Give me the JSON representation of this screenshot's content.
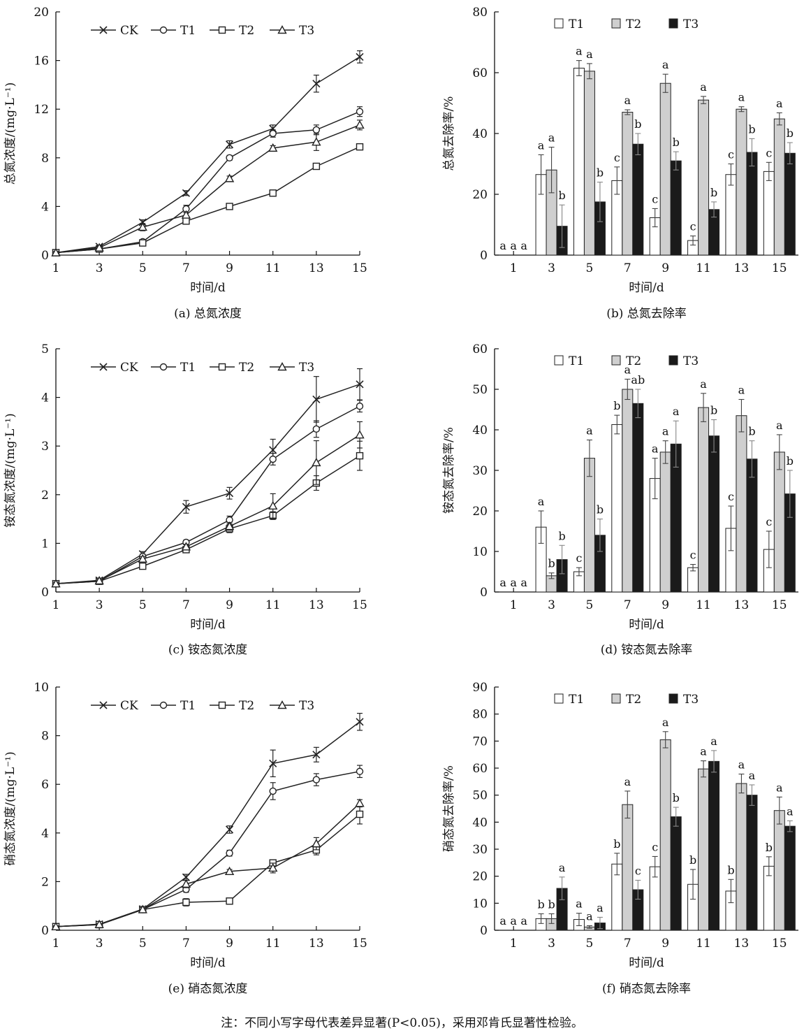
{
  "chart_data": [
    {
      "id": "a",
      "type": "line",
      "caption": "(a) 总氮浓度",
      "ylabel": "总氮浓度/(mg·L⁻¹)",
      "xlabel": "时间/d",
      "x": [
        1,
        3,
        5,
        7,
        9,
        11,
        13,
        15
      ],
      "ylim": [
        0,
        20
      ],
      "yticks": [
        0,
        4,
        8,
        12,
        16,
        20
      ],
      "series": [
        {
          "name": "CK",
          "marker": "x",
          "values": [
            0.2,
            0.7,
            2.7,
            5.1,
            9.1,
            10.4,
            14.1,
            16.3
          ],
          "err": [
            0.1,
            0.1,
            0.2,
            0.2,
            0.3,
            0.3,
            0.7,
            0.5
          ]
        },
        {
          "name": "T1",
          "marker": "circle",
          "values": [
            0.2,
            0.5,
            1.1,
            3.8,
            8.0,
            10.0,
            10.3,
            11.8
          ],
          "err": [
            0.1,
            0.1,
            0.1,
            0.3,
            0.2,
            0.3,
            0.4,
            0.4
          ]
        },
        {
          "name": "T2",
          "marker": "square",
          "values": [
            0.2,
            0.5,
            1.0,
            2.8,
            4.0,
            5.1,
            7.3,
            8.9
          ],
          "err": [
            0.1,
            0.1,
            0.1,
            0.2,
            0.1,
            0.1,
            0.1,
            0.2
          ]
        },
        {
          "name": "T3",
          "marker": "triangle",
          "values": [
            0.2,
            0.6,
            2.3,
            3.3,
            6.3,
            8.8,
            9.3,
            10.7
          ],
          "err": [
            0.1,
            0.1,
            0.3,
            0.2,
            0.2,
            0.2,
            0.7,
            0.4
          ]
        }
      ]
    },
    {
      "id": "b",
      "type": "bar",
      "caption": "(b) 总氮去除率",
      "ylabel": "总氮去除率/%",
      "xlabel": "时间/d",
      "categories": [
        "1",
        "3",
        "5",
        "7",
        "9",
        "11",
        "13",
        "15"
      ],
      "ylim": [
        0,
        80
      ],
      "yticks": [
        0,
        20,
        40,
        60,
        80
      ],
      "series": [
        {
          "name": "T1",
          "values": [
            0,
            26.5,
            61.5,
            24.5,
            12.3,
            4.8,
            26.5,
            27.5
          ],
          "err": [
            0,
            6.5,
            2.5,
            4.5,
            3,
            1.5,
            3.5,
            3
          ],
          "letters": [
            "a",
            "a",
            "a",
            "c",
            "c",
            "c",
            "c",
            "c"
          ]
        },
        {
          "name": "T2",
          "values": [
            0,
            28,
            60.5,
            47,
            56.5,
            51,
            48,
            44.8
          ],
          "err": [
            0,
            7.5,
            2.5,
            0.8,
            3,
            1.2,
            0.8,
            2
          ],
          "letters": [
            "a",
            "a",
            "a",
            "a",
            "a",
            "a",
            "a",
            "a"
          ]
        },
        {
          "name": "T3",
          "values": [
            0,
            9.5,
            17.5,
            36.5,
            31,
            15,
            33.8,
            33.5
          ],
          "err": [
            0,
            7,
            6.5,
            3.5,
            3,
            2.5,
            4.5,
            3.5
          ],
          "letters": [
            "a",
            "b",
            "b",
            "b",
            "b",
            "b",
            "b",
            "b"
          ]
        }
      ]
    },
    {
      "id": "c",
      "type": "line",
      "caption": "(c) 铵态氮浓度",
      "ylabel": "铵态氮浓度/(mg·L⁻¹)",
      "xlabel": "时间/d",
      "x": [
        1,
        3,
        5,
        7,
        9,
        11,
        13,
        15
      ],
      "ylim": [
        0,
        5
      ],
      "yticks": [
        0,
        1,
        2,
        3,
        4,
        5
      ],
      "series": [
        {
          "name": "CK",
          "marker": "x",
          "values": [
            0.17,
            0.24,
            0.78,
            1.75,
            2.03,
            2.92,
            3.96,
            4.27
          ],
          "err": [
            0.03,
            0.03,
            0.05,
            0.13,
            0.12,
            0.22,
            0.47,
            0.32
          ]
        },
        {
          "name": "T1",
          "marker": "circle",
          "values": [
            0.17,
            0.22,
            0.73,
            1.02,
            1.48,
            2.73,
            3.35,
            3.82
          ],
          "err": [
            0.03,
            0.03,
            0.05,
            0.05,
            0.08,
            0.12,
            0.17,
            0.12
          ]
        },
        {
          "name": "T2",
          "marker": "square",
          "values": [
            0.17,
            0.22,
            0.53,
            0.87,
            1.3,
            1.57,
            2.24,
            2.8
          ],
          "err": [
            0.03,
            0.03,
            0.04,
            0.05,
            0.08,
            0.08,
            0.15,
            0.3
          ]
        },
        {
          "name": "T3",
          "marker": "triangle",
          "values": [
            0.17,
            0.23,
            0.68,
            0.93,
            1.35,
            1.77,
            2.66,
            3.23
          ],
          "err": [
            0.03,
            0.03,
            0.05,
            0.05,
            0.08,
            0.25,
            0.45,
            0.27
          ]
        }
      ]
    },
    {
      "id": "d",
      "type": "bar",
      "caption": "(d) 铵态氮去除率",
      "ylabel": "铵态氮去除率/%",
      "xlabel": "时间/d",
      "categories": [
        "1",
        "3",
        "5",
        "7",
        "9",
        "11",
        "13",
        "15"
      ],
      "ylim": [
        0,
        60
      ],
      "yticks": [
        0,
        10,
        20,
        30,
        40,
        50,
        60
      ],
      "series": [
        {
          "name": "T1",
          "values": [
            0,
            16,
            5,
            41.3,
            28,
            6,
            15.7,
            10.5
          ],
          "err": [
            0,
            4,
            1,
            2.3,
            5,
            0.8,
            5.5,
            4.5
          ],
          "letters": [
            "a",
            "a",
            "c",
            "b",
            "a",
            "c",
            "c",
            "c"
          ]
        },
        {
          "name": "T2",
          "values": [
            0,
            4,
            33,
            50,
            34.5,
            45.5,
            43.5,
            34.5
          ],
          "err": [
            0,
            0.7,
            4.5,
            2.5,
            2.8,
            3.5,
            4,
            4.3
          ],
          "letters": [
            "a",
            "b",
            "a",
            "a",
            "a",
            "a",
            "a",
            "a"
          ]
        },
        {
          "name": "T3",
          "values": [
            0,
            8,
            14,
            46.5,
            36.5,
            38.5,
            32.8,
            24.2
          ],
          "err": [
            0,
            3.5,
            4,
            3.5,
            5.7,
            4,
            4.5,
            5.8
          ],
          "letters": [
            "a",
            "b",
            "b",
            "ab",
            "a",
            "b",
            "b",
            "b"
          ]
        }
      ]
    },
    {
      "id": "e",
      "type": "line",
      "caption": "(e) 硝态氮浓度",
      "ylabel": "硝态氮浓度/(mg·L⁻¹)",
      "xlabel": "时间/d",
      "x": [
        1,
        3,
        5,
        7,
        9,
        11,
        13,
        15
      ],
      "ylim": [
        0,
        10
      ],
      "yticks": [
        0,
        2,
        4,
        6,
        8,
        10
      ],
      "series": [
        {
          "name": "CK",
          "marker": "x",
          "values": [
            0.15,
            0.25,
            0.87,
            2.18,
            4.14,
            6.86,
            7.22,
            8.57
          ],
          "err": [
            0.03,
            0.03,
            0.08,
            0.12,
            0.15,
            0.55,
            0.3,
            0.35
          ]
        },
        {
          "name": "T1",
          "marker": "circle",
          "values": [
            0.15,
            0.23,
            0.85,
            1.68,
            3.17,
            5.72,
            6.19,
            6.53
          ],
          "err": [
            0.03,
            0.03,
            0.08,
            0.12,
            0.12,
            0.35,
            0.25,
            0.25
          ]
        },
        {
          "name": "T2",
          "marker": "square",
          "values": [
            0.15,
            0.23,
            0.85,
            1.15,
            1.2,
            2.77,
            3.3,
            4.77
          ],
          "err": [
            0.03,
            0.03,
            0.08,
            0.15,
            0.06,
            0.12,
            0.2,
            0.4
          ]
        },
        {
          "name": "T3",
          "marker": "triangle",
          "values": [
            0.15,
            0.24,
            0.85,
            1.9,
            2.42,
            2.56,
            3.56,
            5.22
          ],
          "err": [
            0.03,
            0.03,
            0.08,
            0.15,
            0.08,
            0.2,
            0.25,
            0.15
          ]
        }
      ]
    },
    {
      "id": "f",
      "type": "bar",
      "caption": "(f) 硝态氮去除率",
      "ylabel": "硝态氮去除率/%",
      "xlabel": "时间/d",
      "categories": [
        "1",
        "3",
        "5",
        "7",
        "9",
        "11",
        "13",
        "15"
      ],
      "ylim": [
        0,
        90
      ],
      "yticks": [
        0,
        10,
        20,
        30,
        40,
        50,
        60,
        70,
        80,
        90
      ],
      "series": [
        {
          "name": "T1",
          "values": [
            0,
            4.3,
            4,
            24.5,
            23.5,
            17,
            14.5,
            23.7
          ],
          "err": [
            0,
            1.8,
            2.3,
            4,
            3.8,
            5.5,
            4.3,
            3.5
          ],
          "letters": [
            "a",
            "b",
            "a",
            "b",
            "c",
            "b",
            "b",
            "b"
          ]
        },
        {
          "name": "T2",
          "values": [
            0,
            4.3,
            1.2,
            46.5,
            70.5,
            59.7,
            54.3,
            44.3
          ],
          "err": [
            0,
            1.8,
            0.5,
            5,
            3,
            3,
            3.5,
            5
          ],
          "letters": [
            "a",
            "b",
            "a",
            "a",
            "a",
            "a",
            "a",
            "a"
          ]
        },
        {
          "name": "T3",
          "values": [
            0,
            15.5,
            2.7,
            15,
            42,
            62.5,
            50,
            38.5
          ],
          "err": [
            0,
            4.2,
            2.1,
            3.5,
            3.5,
            4,
            3.8,
            2
          ],
          "letters": [
            "a",
            "a",
            "a",
            "c",
            "b",
            "a",
            "a",
            "a"
          ]
        }
      ]
    }
  ],
  "note": "注：不同小写字母代表差异显著(P<0.05)，采用邓肯氏显著性检验。"
}
